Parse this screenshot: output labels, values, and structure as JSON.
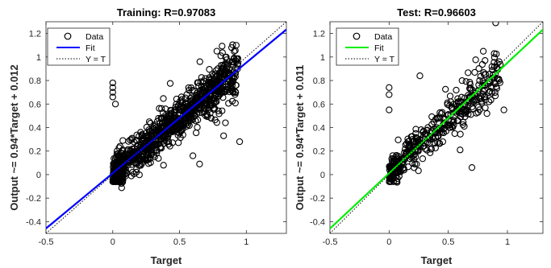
{
  "chart_data": [
    {
      "type": "scatter",
      "title": "Training: R=0.97083",
      "xlabel": "Target",
      "ylabel": "Output ~= 0.94*Target + 0.012",
      "xlim": [
        -0.5,
        1.3
      ],
      "ylim": [
        -0.5,
        1.3
      ],
      "xticks": [
        "-0.5",
        "0",
        "0.5",
        "1"
      ],
      "yticks": [
        "-0.4",
        "-0.2",
        "0",
        "0.2",
        "0.4",
        "0.6",
        "0.8",
        "1",
        "1.2"
      ],
      "fit": {
        "slope": 0.94,
        "intercept": 0.012,
        "color": "#0000ff"
      },
      "legend": {
        "position": "top-left",
        "entries": [
          "Data",
          "Fit",
          "Y = T"
        ]
      },
      "point_distribution": {
        "seed": 7,
        "count": 1100,
        "slope": 0.94,
        "intercept": 0.012,
        "spread": 0.09,
        "outliers": [
          [
            0,
            0.78
          ],
          [
            0,
            0.74
          ],
          [
            0,
            0.7
          ],
          [
            0,
            0.66
          ],
          [
            0.02,
            0.6
          ],
          [
            0.6,
            0.16
          ],
          [
            0.65,
            0.09
          ],
          [
            0.38,
            0.08
          ],
          [
            0.89,
            1.08
          ],
          [
            0.95,
            0.28
          ],
          [
            0.83,
            0.33
          ]
        ]
      }
    },
    {
      "type": "scatter",
      "title": "Test: R=0.96603",
      "xlabel": "Target",
      "ylabel": "Output ~= 0.94*Target + 0.011",
      "xlim": [
        -0.5,
        1.3
      ],
      "ylim": [
        -0.5,
        1.3
      ],
      "xticks": [
        "-0.5",
        "0",
        "0.5",
        "1"
      ],
      "yticks": [
        "-0.4",
        "-0.2",
        "0",
        "0.2",
        "0.4",
        "0.6",
        "0.8",
        "1",
        "1.2"
      ],
      "fit": {
        "slope": 0.94,
        "intercept": 0.011,
        "color": "#00ee00"
      },
      "legend": {
        "position": "top-left",
        "entries": [
          "Data",
          "Fit",
          "Y = T"
        ]
      },
      "point_distribution": {
        "seed": 19,
        "count": 420,
        "slope": 0.94,
        "intercept": 0.011,
        "spread": 0.085,
        "outliers": [
          [
            0,
            0.74
          ],
          [
            0,
            0.68
          ],
          [
            0.0,
            0.55
          ],
          [
            0.26,
            0.84
          ],
          [
            0.7,
            0.06
          ],
          [
            0.97,
            0.55
          ],
          [
            0.93,
            0.96
          ],
          [
            0.6,
            0.21
          ]
        ]
      }
    }
  ]
}
